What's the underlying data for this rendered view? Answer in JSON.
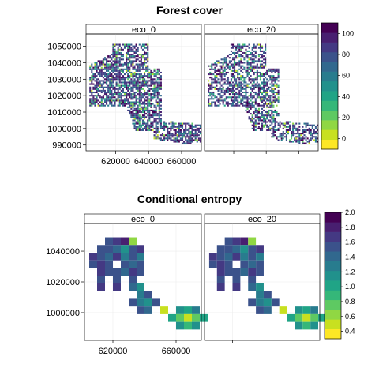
{
  "chart_data": [
    {
      "type": "heatmap",
      "title": "Forest cover",
      "panels": [
        "eco_0",
        "eco_20"
      ],
      "xlim": [
        602000,
        672000
      ],
      "ylim": [
        986500,
        1057500
      ],
      "x_ticks": [
        620000,
        640000,
        660000
      ],
      "x_tick_labels": [
        "620000",
        "640000",
        "660000"
      ],
      "y_ticks": [
        990000,
        1000000,
        1010000,
        1020000,
        1030000,
        1040000,
        1050000
      ],
      "y_tick_labels": [
        "990000",
        "1000000",
        "1010000",
        "1020000",
        "1030000",
        "1040000",
        "1050000"
      ],
      "colorbar": {
        "range": [
          -10,
          110
        ],
        "ticks": [
          0,
          20,
          40,
          60,
          80,
          100
        ],
        "tick_labels": [
          "0",
          "20",
          "40",
          "60",
          "80",
          "100"
        ],
        "colors": [
          "#FDE725",
          "#C8E020",
          "#90D743",
          "#5EC962",
          "#35B779",
          "#20A486",
          "#21918C",
          "#287C8E",
          "#31688E",
          "#3B528B",
          "#443983",
          "#481F70",
          "#440154"
        ]
      },
      "grid": true,
      "values_note_visible": "fine-resolution raster, values mostly 70-100"
    },
    {
      "type": "heatmap",
      "title": "Conditional entropy",
      "panels": [
        "eco_0",
        "eco_20"
      ],
      "xlim": [
        602000,
        676000
      ],
      "ylim": [
        982000,
        1058000
      ],
      "x_ticks": [
        620000,
        660000
      ],
      "x_tick_labels": [
        "620000",
        "660000"
      ],
      "y_ticks": [
        1000000,
        1020000,
        1040000
      ],
      "y_tick_labels": [
        "1000000",
        "1020000",
        "1040000"
      ],
      "colorbar": {
        "range": [
          0.3,
          2.0
        ],
        "ticks": [
          0.4,
          0.6,
          0.8,
          1.0,
          1.2,
          1.4,
          1.6,
          1.8,
          2.0
        ],
        "tick_labels": [
          "0.4",
          "0.6",
          "0.8",
          "1.0",
          "1.2",
          "1.4",
          "1.6",
          "1.8",
          "2.0"
        ],
        "colors": [
          "#FDE725",
          "#C8E020",
          "#90D743",
          "#5EC962",
          "#35B779",
          "#20A486",
          "#21918C",
          "#287C8E",
          "#31688E",
          "#3B528B",
          "#443983",
          "#481F70",
          "#440154"
        ]
      },
      "grid": true
    }
  ]
}
